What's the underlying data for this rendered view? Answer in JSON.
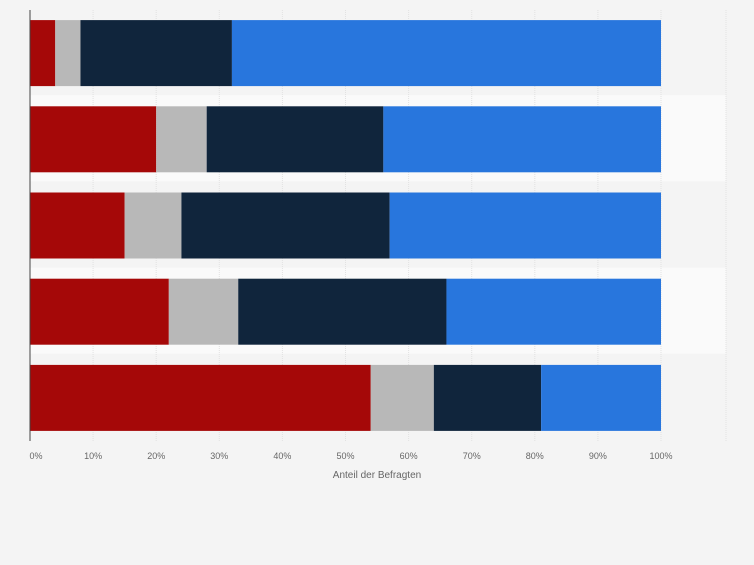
{
  "chart_data": {
    "type": "bar",
    "orientation": "horizontal",
    "stacked": true,
    "categories": [
      "",
      "",
      "",
      "",
      ""
    ],
    "series": [
      {
        "color": "#a50808",
        "values": [
          4,
          20,
          15,
          22,
          54
        ]
      },
      {
        "color": "#b8b8b8",
        "values": [
          4,
          8,
          9,
          11,
          10
        ]
      },
      {
        "color": "#10253c",
        "values": [
          24,
          28,
          33,
          33,
          17
        ]
      },
      {
        "color": "#2876dd",
        "values": [
          68,
          44,
          43,
          34,
          19
        ]
      }
    ],
    "xlabel": "Anteil der Befragten",
    "ylabel": "",
    "xlim": [
      0,
      100
    ],
    "x_ticks": [
      "0%",
      "10%",
      "20%",
      "30%",
      "40%",
      "50%",
      "60%",
      "70%",
      "80%",
      "90%",
      "100%"
    ],
    "grid": true,
    "legend": "none"
  }
}
